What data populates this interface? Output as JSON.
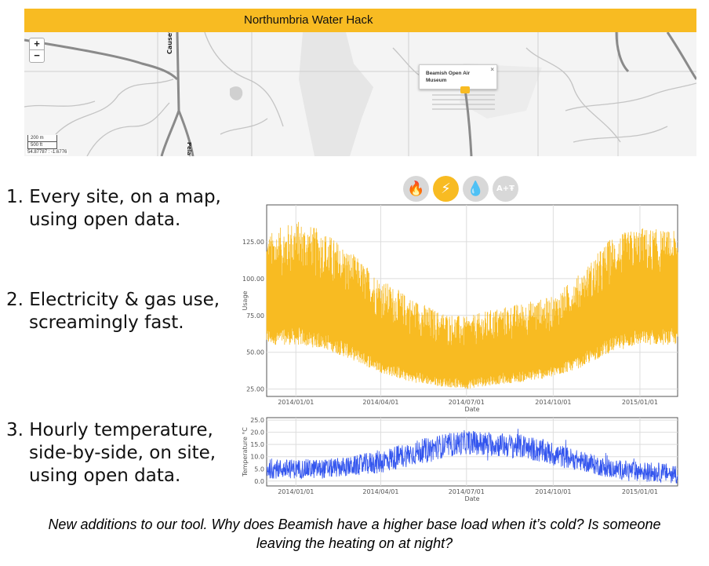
{
  "header": {
    "title": "Northumbria Water Hack"
  },
  "map": {
    "zoom_in_label": "+",
    "zoom_out_label": "−",
    "road_label": "Causey",
    "road_label_2": "Pelaw",
    "scale_m": "200 m",
    "scale_ft": "500 ft",
    "coords": "54.87787 : -1.6776",
    "popup_text": "Beamish Open Air Museum",
    "popup_close": "×"
  },
  "bullets": [
    {
      "line1": "1. Every site, on a map,",
      "line2": "using open data."
    },
    {
      "line1": "2. Electricity & gas use,",
      "line2": "screamingly fast."
    },
    {
      "line1": "3. Hourly temperature,",
      "line2": "side-by-side, on site,",
      "line3": "using open data."
    }
  ],
  "fuel_icons": {
    "gas": "🔥",
    "electricity": "⚡",
    "water": "💧",
    "other": "A+Ŧ",
    "selected": "electricity",
    "accent": "#f8bb22",
    "inactive": "#d8d8d8"
  },
  "chart_data": [
    {
      "type": "area",
      "xlabel": "Date",
      "ylabel": "Usage",
      "x_ticks": [
        "2014/01/01",
        "2014/04/01",
        "2014/07/01",
        "2014/10/01",
        "2015/01/01"
      ],
      "y_ticks": [
        "25.00",
        "50.00",
        "75.00",
        "100.00",
        "125.00"
      ],
      "xlim": [
        "2013-12-01",
        "2015-02-10"
      ],
      "ylim": [
        20,
        150
      ],
      "grid": true,
      "color": "#f8bb22",
      "series": [
        {
          "x": [
            "2013-12-01",
            "2014-01-01",
            "2014-02-01",
            "2014-03-01",
            "2014-04-01",
            "2014-05-01",
            "2014-06-01",
            "2014-07-01",
            "2014-08-01",
            "2014-09-01",
            "2014-10-01",
            "2014-11-01",
            "2014-12-01",
            "2015-01-01",
            "2015-02-10"
          ],
          "high": [
            130,
            140,
            132,
            118,
            100,
            88,
            78,
            74,
            80,
            84,
            88,
            105,
            128,
            135,
            132
          ],
          "low": [
            55,
            55,
            52,
            45,
            36,
            30,
            27,
            25,
            28,
            30,
            33,
            40,
            50,
            55,
            55
          ]
        }
      ]
    },
    {
      "type": "line",
      "xlabel": "Date",
      "ylabel": "Temperature °C",
      "x_ticks": [
        "2014/01/01",
        "2014/04/01",
        "2014/07/01",
        "2014/10/01",
        "2015/01/01"
      ],
      "y_ticks": [
        "0.0",
        "5.0",
        "10.0",
        "15.0",
        "20.0",
        "25.0"
      ],
      "xlim": [
        "2013-12-01",
        "2015-02-10"
      ],
      "ylim": [
        -2,
        26
      ],
      "grid": true,
      "color": "#3355ee",
      "series": [
        {
          "x": [
            "2013-12-01",
            "2014-01-01",
            "2014-02-01",
            "2014-03-01",
            "2014-04-01",
            "2014-05-01",
            "2014-06-01",
            "2014-07-01",
            "2014-08-01",
            "2014-09-01",
            "2014-10-01",
            "2014-11-01",
            "2014-12-01",
            "2015-01-01",
            "2015-02-10"
          ],
          "mean": [
            5,
            5,
            5,
            6,
            8,
            11,
            14,
            16,
            15,
            14,
            11,
            8,
            5,
            4,
            3
          ],
          "spread": [
            4,
            4,
            4,
            4,
            5,
            5,
            5,
            5,
            5,
            5,
            5,
            4,
            4,
            4,
            4
          ]
        }
      ]
    }
  ],
  "caption": {
    "line1": "New additions to our tool. Why does Beamish have a higher base load when it’s cold? Is someone",
    "line2": "leaving the heating on at night?"
  }
}
